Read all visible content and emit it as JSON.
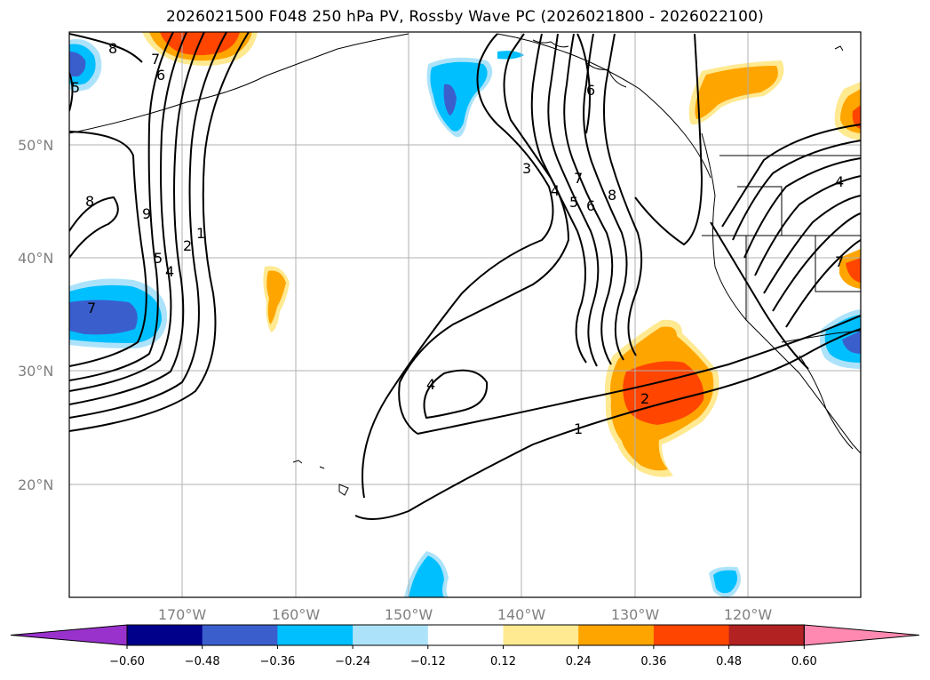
{
  "title": "2026021500 F048 250 hPa PV, Rossby Wave PC (2026021800 - 2026022100)",
  "map": {
    "lat_labels": [
      "50°N",
      "40°N",
      "30°N",
      "20°N"
    ],
    "lon_labels": [
      "170°W",
      "160°W",
      "150°W",
      "140°W",
      "130°W",
      "120°W"
    ],
    "gridlines": true,
    "contour_labels": {
      "west": [
        "8",
        "7",
        "6",
        "8",
        "9",
        "5",
        "4",
        "2",
        "1",
        "7",
        "5"
      ],
      "central": [
        "3",
        "4",
        "5",
        "6",
        "7",
        "8",
        "6",
        "4",
        "2",
        "1"
      ],
      "east": [
        "4",
        "7"
      ]
    },
    "shaded_field": "Rossby Wave PC",
    "contour_field": "250 hPa PV"
  },
  "colorbar": {
    "ticks": [
      "−0.60",
      "−0.48",
      "−0.36",
      "−0.24",
      "−0.12",
      "0.12",
      "0.24",
      "0.36",
      "0.48",
      "0.60"
    ],
    "colors": [
      "#9932CC",
      "#00008B",
      "#3A5FCD",
      "#00BFFF",
      "#ADE3FA",
      "#FFFFFF",
      "#FFE991",
      "#FFA500",
      "#FF4500",
      "#B22222",
      "#FF89B0"
    ],
    "extend": "both"
  }
}
